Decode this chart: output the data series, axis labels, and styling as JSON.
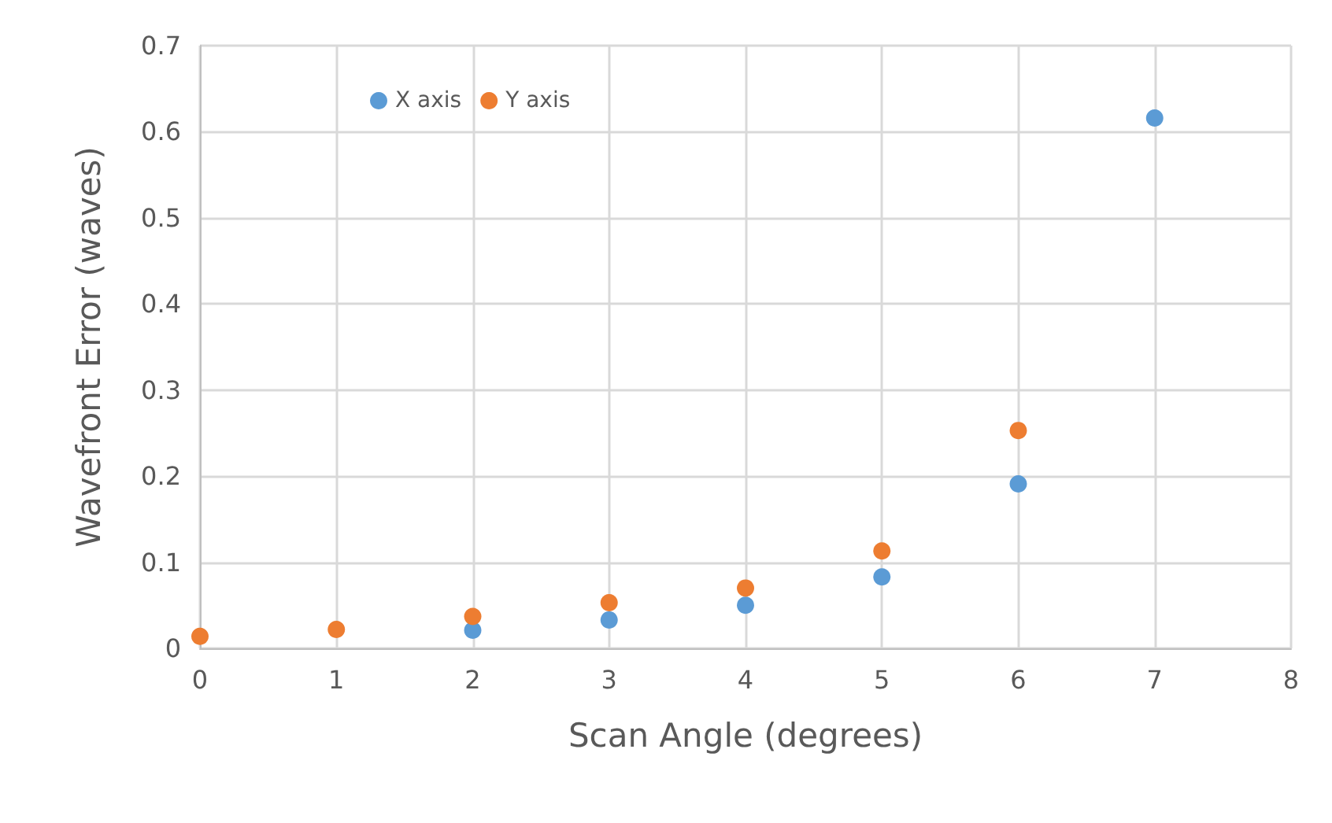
{
  "chart_data": {
    "type": "scatter",
    "xlabel": "Scan Angle (degrees)",
    "ylabel": "Wavefront Error (waves)",
    "x": [
      0,
      1,
      2,
      3,
      4,
      5,
      6,
      7
    ],
    "series": [
      {
        "name": "X axis",
        "color": "#5b9bd5",
        "values": [
          null,
          null,
          0.021,
          0.033,
          0.05,
          0.083,
          0.191,
          0.616
        ]
      },
      {
        "name": "Y axis",
        "color": "#ed7d31",
        "values": [
          0.014,
          0.022,
          0.037,
          0.053,
          0.07,
          0.113,
          0.253,
          null
        ]
      }
    ],
    "xlim": [
      0,
      8
    ],
    "xticks": [
      0,
      1,
      2,
      3,
      4,
      5,
      6,
      7,
      8
    ],
    "ylim": [
      0,
      0.7
    ],
    "yticks": [
      0,
      0.1,
      0.2,
      0.3,
      0.4,
      0.5,
      0.6,
      0.7
    ],
    "grid": true,
    "legend": "top left",
    "marker": "circle"
  }
}
